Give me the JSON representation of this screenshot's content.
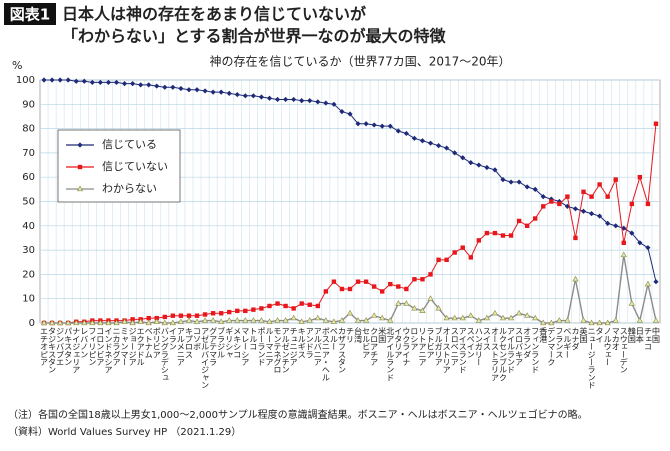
{
  "header": {
    "badge": "図表1",
    "title_lines": [
      "日本人は神の存在をあまり信じていないが",
      "「わからない」とする割合が世界一なのが最大の特徴"
    ]
  },
  "chart_data": {
    "type": "line",
    "title": "神の存在を信じているか（世界77カ国、2017〜20年）",
    "ylabel": "%",
    "ylim": [
      0,
      100
    ],
    "yticks": [
      0,
      10,
      20,
      30,
      40,
      50,
      60,
      70,
      80,
      90,
      100
    ],
    "grid": true,
    "legend": "upper left",
    "categories": [
      "エチオピア",
      "タジキスタン",
      "ジンバブエ",
      "パキスタン",
      "ナイジェリア",
      "レバノン",
      "フィリピン",
      "コロンビア",
      "インドネシア",
      "ニカラグア",
      "ミャンマー",
      "ジョージア",
      "エクアドル",
      "ベトナム",
      "ボリビア",
      "バングラデシュ",
      "イラン",
      "アルメニア",
      "キプロス",
      "コソボ",
      "アゼルバイジャン",
      "グアテマラ",
      "ブラジル",
      "ギリシャ",
      "メキシコ",
      "マレーシア",
      "トルコ",
      "ポーランド",
      "ルーマニア",
      "モンテネグロ",
      "アルゼンチン",
      "チュニジア",
      "キルギス",
      "アンドラ",
      "アルバニア",
      "ボスニア・ヘル",
      "ペルー",
      "カザフスタン",
      "チリ",
      "台湾",
      "セルビア",
      "クロアチア",
      "米国",
      "北アイルランド",
      "イタリア",
      "ウクライナ",
      "ロシア",
      "リトアニア",
      "ラトビア",
      "ブルガリア",
      "オーストリア",
      "スロベニア",
      "アイスランド",
      "スペイン",
      "ハンガリー",
      "スイス",
      "オーストラリア",
      "ルクセンブルク",
      "アイルランド",
      "スロバキア",
      "オランダ",
      "フィンランド",
      "香港",
      "デンマーク",
      "フランス",
      "ベルギー",
      "カナダ",
      "英国",
      "ニュージーランド",
      "タイ",
      "ノルウェー",
      "マカオ",
      "スウェーデン",
      "韓国",
      "日本",
      "チェコ",
      "中国"
    ],
    "series": [
      {
        "name": "信じている",
        "color": "#1f2a78",
        "marker": "diamond",
        "values": [
          100,
          100,
          100,
          100,
          99.5,
          99.5,
          99,
          99,
          99,
          99,
          98.5,
          98.5,
          98,
          98,
          97.5,
          97,
          97,
          96.5,
          96,
          96,
          95.5,
          95,
          95,
          94.5,
          94,
          93.5,
          93.5,
          93,
          92.5,
          92,
          92,
          92,
          91.5,
          91.5,
          91,
          90.5,
          90,
          87,
          86,
          82,
          82,
          81.5,
          81,
          81,
          79,
          78,
          76,
          75,
          74,
          73,
          72,
          70,
          68,
          66,
          65,
          64,
          63,
          59,
          58,
          58,
          56,
          55,
          52,
          51,
          50,
          48,
          47,
          46,
          45,
          44,
          41,
          40,
          39,
          37,
          33,
          31,
          17
        ]
      },
      {
        "name": "信じていない",
        "color": "#e8171c",
        "marker": "square",
        "values": [
          0,
          0,
          0,
          0,
          0.5,
          0.5,
          1,
          1,
          1,
          1,
          1,
          1.5,
          1.5,
          2,
          2,
          2.5,
          3,
          3,
          3,
          3,
          3.5,
          4,
          4,
          4.5,
          5,
          5,
          5.5,
          6,
          7,
          8,
          7,
          6,
          8,
          7.5,
          7,
          13,
          17,
          14,
          14,
          17,
          17,
          15,
          13,
          16,
          15,
          14,
          18,
          18,
          20,
          26,
          26,
          29,
          31,
          27,
          34,
          37,
          37,
          36,
          36,
          42,
          40,
          43,
          48,
          50,
          49,
          52,
          35,
          54,
          52,
          57,
          52,
          59,
          33,
          49,
          60,
          49,
          82
        ]
      },
      {
        "name": "わからない",
        "color": "#8c8c8c",
        "marker": "triangle",
        "values": [
          0,
          0,
          0,
          0,
          0,
          0,
          0,
          0,
          0,
          0,
          0.5,
          0,
          0.5,
          0,
          0.5,
          0,
          0,
          0.5,
          1,
          0.5,
          1,
          1,
          0.5,
          1,
          1,
          1,
          1,
          1,
          0.5,
          1,
          1,
          2,
          0.5,
          1,
          2,
          1,
          0.5,
          1,
          4,
          1,
          1,
          3,
          2,
          1,
          8,
          8,
          6,
          5,
          10,
          6,
          2,
          2,
          2,
          3,
          1,
          2,
          4,
          2,
          2,
          4,
          3,
          2,
          0,
          0,
          1,
          1,
          18,
          1,
          0,
          0,
          0,
          1,
          28,
          8,
          1,
          16,
          1
        ]
      }
    ]
  },
  "notes": [
    "（注）各国の全国18歳以上男女1,000〜2,000サンプル程度の意識調査結果。ボスニア・ヘルはボスニア・ヘルツェゴビナの略。",
    "（資料）World Values Survey HP （2021.1.29）"
  ]
}
